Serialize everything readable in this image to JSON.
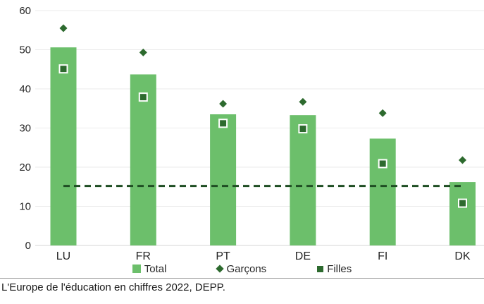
{
  "chart_data": {
    "type": "bar",
    "title": "",
    "categories": [
      "LU",
      "FR",
      "PT",
      "DE",
      "FI",
      "DK"
    ],
    "series": [
      {
        "name": "Total",
        "type": "bar",
        "color": "#6CBF6B",
        "values": [
          50.6,
          43.7,
          33.5,
          33.3,
          27.3,
          16.2
        ]
      },
      {
        "name": "Garçons",
        "type": "scatter-diamond",
        "color": "#2D6A2E",
        "values": [
          55.5,
          49.3,
          36.2,
          36.7,
          33.8,
          21.8
        ]
      },
      {
        "name": "Filles",
        "type": "scatter-square",
        "color": "#2D6A2E",
        "values": [
          45.1,
          37.9,
          31.2,
          29.8,
          20.9,
          10.8
        ]
      }
    ],
    "reference_line": {
      "value": 15.2,
      "style": "dashed",
      "color": "#1F4E23",
      "extent": "first-to-last-category"
    },
    "xlabel": "",
    "ylabel": "",
    "ylim": [
      0,
      60
    ],
    "yticks": [
      0,
      10,
      20,
      30,
      40,
      50,
      60
    ],
    "grid": "horizontal",
    "gridline_color": "#ebebeb",
    "axis_line_color": "#d6d6d6",
    "tick_label_color": "#262626",
    "legend_position": "bottom"
  },
  "caption": "L'Europe de l'éducation en chiffres 2022, DEPP."
}
